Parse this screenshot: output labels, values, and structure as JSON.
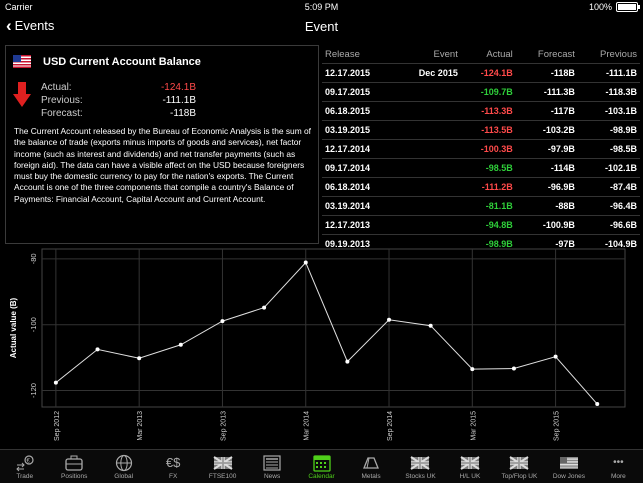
{
  "status_bar": {
    "carrier": "Carrier",
    "time": "5:09 PM",
    "battery": "100%"
  },
  "nav": {
    "back_label": "Events",
    "title": "Event"
  },
  "event": {
    "title": "USD Current Account Balance",
    "actual_label": "Actual:",
    "actual_value": "-124.1B",
    "previous_label": "Previous:",
    "previous_value": "-111.1B",
    "forecast_label": "Forecast:",
    "forecast_value": "-118B",
    "description": "The Current Account released by the Bureau of Economic Analysis is the sum of the balance of trade (exports minus imports of goods and services), net factor income (such as interest and dividends) and net transfer payments (such as foreign aid). The data can have a visible affect on the USD because foreigners must buy the domestic currency to pay for the nation's exports. The Current Account is one of the three components that compile a country's Balance of Payments: Financial Account, Capital Account and Current Account."
  },
  "table": {
    "headers": [
      "Release",
      "Event",
      "Actual",
      "Forecast",
      "Previous"
    ],
    "rows": [
      {
        "release": "12.17.2015",
        "event": "Dec 2015",
        "actual": "-124.1B",
        "actual_color": "red",
        "forecast": "-118B",
        "previous": "-111.1B"
      },
      {
        "release": "09.17.2015",
        "event": "",
        "actual": "-109.7B",
        "actual_color": "green",
        "forecast": "-111.3B",
        "previous": "-118.3B"
      },
      {
        "release": "06.18.2015",
        "event": "",
        "actual": "-113.3B",
        "actual_color": "red",
        "forecast": "-117B",
        "previous": "-103.1B"
      },
      {
        "release": "03.19.2015",
        "event": "",
        "actual": "-113.5B",
        "actual_color": "red",
        "forecast": "-103.2B",
        "previous": "-98.9B"
      },
      {
        "release": "12.17.2014",
        "event": "",
        "actual": "-100.3B",
        "actual_color": "red",
        "forecast": "-97.9B",
        "previous": "-98.5B"
      },
      {
        "release": "09.17.2014",
        "event": "",
        "actual": "-98.5B",
        "actual_color": "green",
        "forecast": "-114B",
        "previous": "-102.1B"
      },
      {
        "release": "06.18.2014",
        "event": "",
        "actual": "-111.2B",
        "actual_color": "red",
        "forecast": "-96.9B",
        "previous": "-87.4B"
      },
      {
        "release": "03.19.2014",
        "event": "",
        "actual": "-81.1B",
        "actual_color": "green",
        "forecast": "-88B",
        "previous": "-96.4B"
      },
      {
        "release": "12.17.2013",
        "event": "",
        "actual": "-94.8B",
        "actual_color": "green",
        "forecast": "-100.9B",
        "previous": "-96.6B"
      },
      {
        "release": "09.19.2013",
        "event": "",
        "actual": "-98.9B",
        "actual_color": "green",
        "forecast": "-97B",
        "previous": "-104.9B"
      }
    ]
  },
  "chart_data": {
    "type": "line",
    "ylabel": "Actual value (B)",
    "ylim": [
      -125,
      -77
    ],
    "yticks": [
      -80,
      -100,
      -120
    ],
    "xticks": [
      "Sep 2012",
      "Mar 2013",
      "Sep 2013",
      "Mar 2014",
      "Sep 2014",
      "Mar 2015",
      "Sep 2015"
    ],
    "series": [
      {
        "points": [
          {
            "x": "2012-09",
            "y": -117.6
          },
          {
            "x": "2012-12",
            "y": -107.5
          },
          {
            "x": "2013-03",
            "y": -110.2
          },
          {
            "x": "2013-06",
            "y": -106.1
          },
          {
            "x": "2013-09",
            "y": -98.9
          },
          {
            "x": "2013-12",
            "y": -94.8
          },
          {
            "x": "2014-03",
            "y": -81.1
          },
          {
            "x": "2014-06",
            "y": -111.2
          },
          {
            "x": "2014-09",
            "y": -98.5
          },
          {
            "x": "2014-12",
            "y": -100.3
          },
          {
            "x": "2015-03",
            "y": -113.5
          },
          {
            "x": "2015-06",
            "y": -113.3
          },
          {
            "x": "2015-09",
            "y": -109.7
          },
          {
            "x": "2015-12",
            "y": -124.1
          }
        ]
      }
    ],
    "grid": true
  },
  "tabs": [
    {
      "label": "Trade",
      "icon": "trade-icon"
    },
    {
      "label": "Positions",
      "icon": "briefcase-icon"
    },
    {
      "label": "Global",
      "icon": "globe-icon"
    },
    {
      "label": "FX",
      "icon": "currency-icon",
      "glyph": "€$"
    },
    {
      "label": "FTSE100",
      "icon": "uk-flag-icon"
    },
    {
      "label": "News",
      "icon": "news-icon"
    },
    {
      "label": "Calendar",
      "icon": "calendar-icon",
      "active": true
    },
    {
      "label": "Metals",
      "icon": "gold-bar-icon"
    },
    {
      "label": "Stocks UK",
      "icon": "uk-flag-icon"
    },
    {
      "label": "H/L UK",
      "icon": "uk-flag-icon"
    },
    {
      "label": "Top/Flop UK",
      "icon": "uk-flag-icon"
    },
    {
      "label": "Dow Jones",
      "icon": "us-flag-icon"
    },
    {
      "label": "More",
      "icon": "more-icon",
      "glyph": "•••"
    }
  ],
  "colors": {
    "negative": "#ff4a4a",
    "positive": "#2fcf3a",
    "active_tab": "#4fd01a",
    "background": "#000000"
  }
}
